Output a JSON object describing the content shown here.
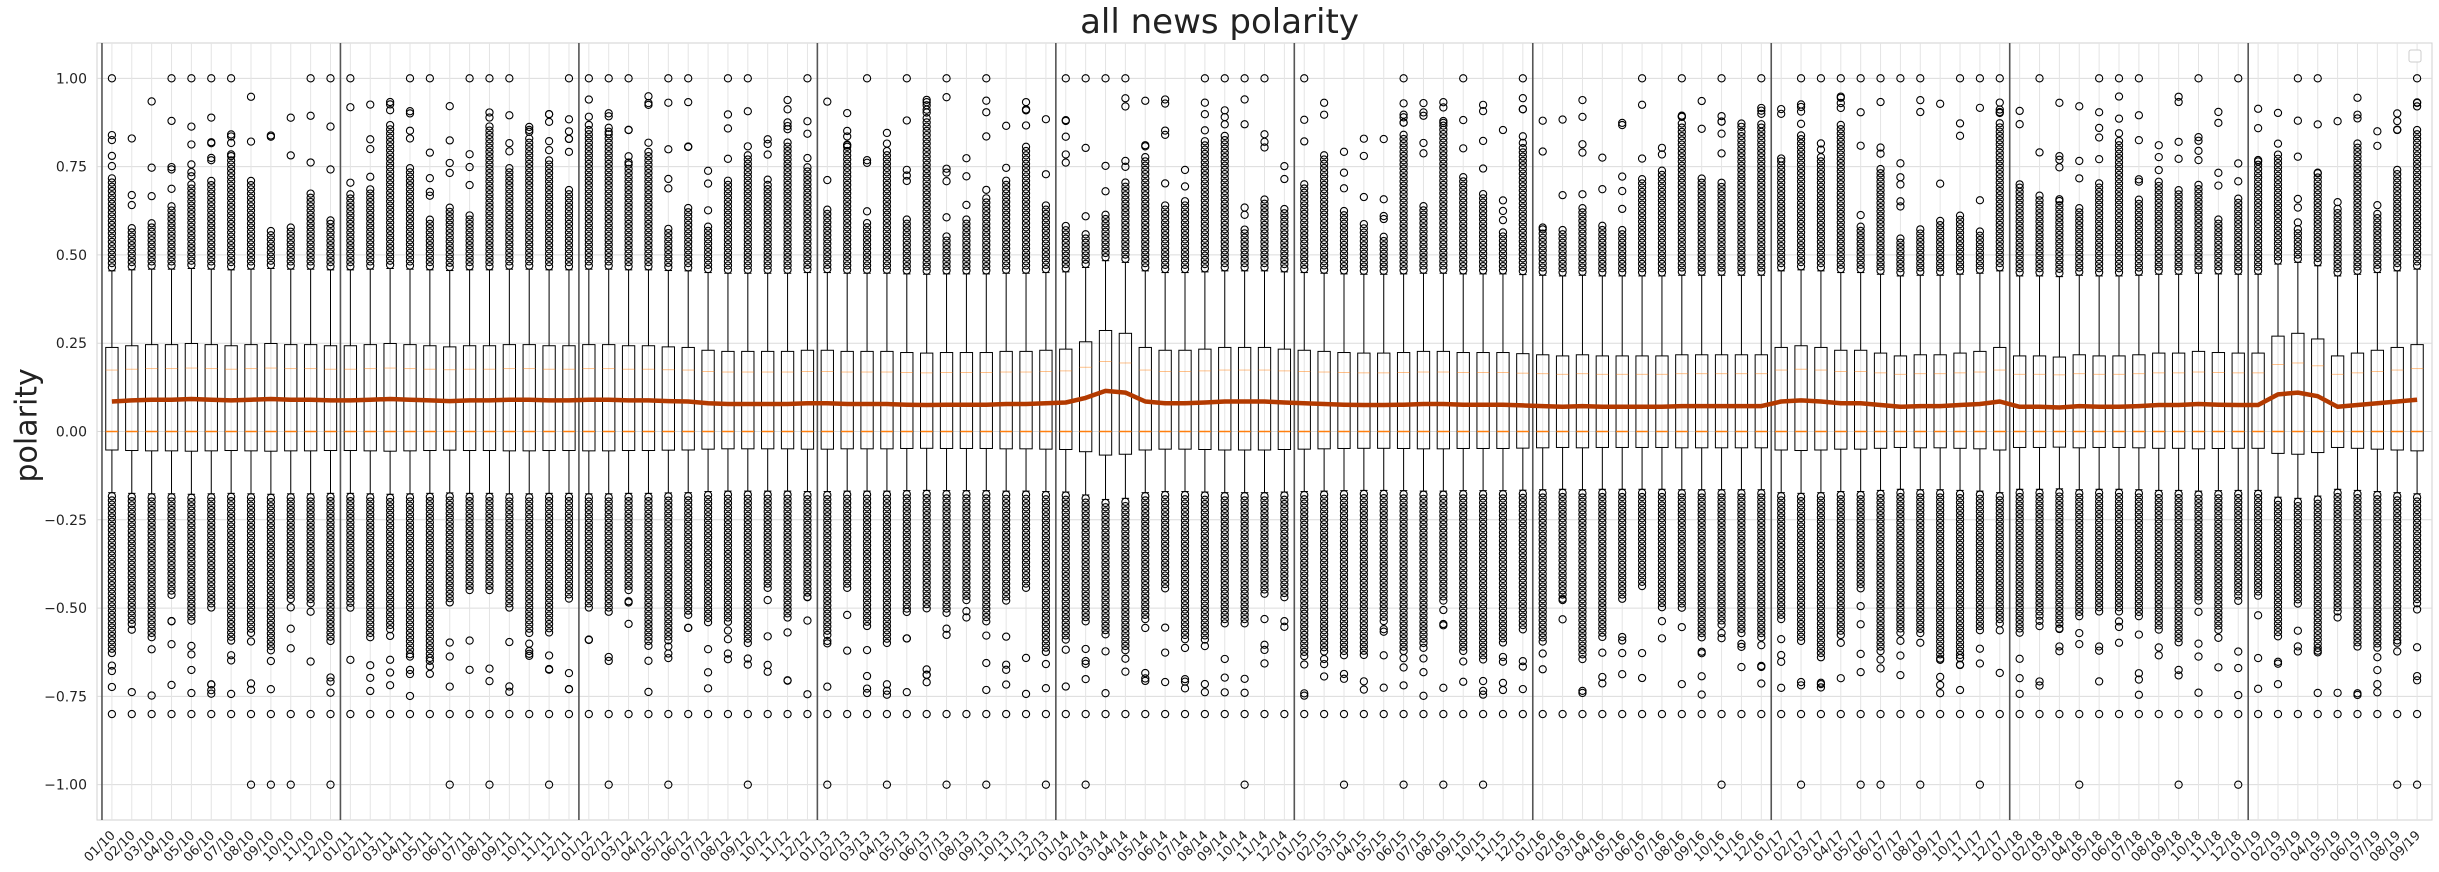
{
  "chart_data": {
    "type": "box",
    "title": "all news polarity",
    "xlabel": "",
    "ylabel": "polarity",
    "ylim": [
      -1.1,
      1.1
    ],
    "yticks": [
      -1.0,
      -0.75,
      -0.5,
      -0.25,
      0.0,
      0.25,
      0.5,
      0.75,
      1.0
    ],
    "ytick_labels": [
      "−1.00",
      "−0.75",
      "−0.50",
      "−0.25",
      "0.00",
      "0.25",
      "0.50",
      "0.75",
      "1.00"
    ],
    "grid": true,
    "categories": [
      "01/10",
      "02/10",
      "03/10",
      "04/10",
      "05/10",
      "06/10",
      "07/10",
      "08/10",
      "09/10",
      "10/10",
      "11/10",
      "12/10",
      "01/11",
      "02/11",
      "03/11",
      "04/11",
      "05/11",
      "06/11",
      "07/11",
      "08/11",
      "09/11",
      "10/11",
      "11/11",
      "12/11",
      "01/12",
      "02/12",
      "03/12",
      "04/12",
      "05/12",
      "06/12",
      "07/12",
      "08/12",
      "09/12",
      "10/12",
      "11/12",
      "12/12",
      "01/13",
      "02/13",
      "03/13",
      "04/13",
      "05/13",
      "06/13",
      "07/13",
      "08/13",
      "09/13",
      "10/13",
      "11/13",
      "12/13",
      "01/14",
      "02/14",
      "03/14",
      "04/14",
      "05/14",
      "06/14",
      "07/14",
      "08/14",
      "09/14",
      "10/14",
      "11/14",
      "12/14",
      "01/15",
      "02/15",
      "03/15",
      "04/15",
      "05/15",
      "06/15",
      "07/15",
      "08/15",
      "09/15",
      "10/15",
      "11/15",
      "12/15",
      "01/16",
      "02/16",
      "03/16",
      "04/16",
      "05/16",
      "06/16",
      "07/16",
      "08/16",
      "09/16",
      "10/16",
      "11/16",
      "12/16",
      "01/17",
      "02/17",
      "03/17",
      "04/17",
      "05/17",
      "06/17",
      "07/17",
      "08/17",
      "09/17",
      "10/17",
      "11/17",
      "12/17",
      "01/18",
      "02/18",
      "03/18",
      "04/18",
      "05/18",
      "06/18",
      "07/18",
      "08/18",
      "09/18",
      "10/18",
      "11/18",
      "12/18",
      "01/19",
      "02/19",
      "03/19",
      "04/19",
      "05/19",
      "06/19",
      "07/19",
      "08/19",
      "09/19"
    ],
    "year_separators": [
      "01/11",
      "01/12",
      "01/13",
      "01/14",
      "01/15",
      "01/16",
      "01/17",
      "01/18",
      "01/19"
    ],
    "typical_box": {
      "q1": -0.05,
      "median": 0.0,
      "q3": 0.23,
      "whisker_low": -0.17,
      "whisker_high": 0.45
    },
    "median_color": "#ff7f0e",
    "mean_line_color": "#b33a00",
    "mean": [
      0.085,
      0.088,
      0.09,
      0.09,
      0.092,
      0.09,
      0.088,
      0.09,
      0.092,
      0.09,
      0.09,
      0.088,
      0.088,
      0.09,
      0.092,
      0.09,
      0.088,
      0.086,
      0.088,
      0.088,
      0.09,
      0.09,
      0.088,
      0.088,
      0.09,
      0.09,
      0.088,
      0.088,
      0.086,
      0.085,
      0.08,
      0.078,
      0.078,
      0.078,
      0.078,
      0.08,
      0.08,
      0.078,
      0.078,
      0.078,
      0.076,
      0.075,
      0.076,
      0.076,
      0.076,
      0.078,
      0.078,
      0.08,
      0.082,
      0.095,
      0.115,
      0.11,
      0.085,
      0.08,
      0.08,
      0.082,
      0.085,
      0.085,
      0.085,
      0.082,
      0.08,
      0.078,
      0.076,
      0.075,
      0.075,
      0.076,
      0.078,
      0.078,
      0.076,
      0.076,
      0.076,
      0.074,
      0.072,
      0.07,
      0.072,
      0.07,
      0.07,
      0.07,
      0.07,
      0.072,
      0.072,
      0.072,
      0.072,
      0.072,
      0.085,
      0.088,
      0.085,
      0.08,
      0.08,
      0.075,
      0.07,
      0.072,
      0.072,
      0.075,
      0.078,
      0.085,
      0.07,
      0.07,
      0.068,
      0.072,
      0.07,
      0.07,
      0.072,
      0.075,
      0.075,
      0.078,
      0.076,
      0.075,
      0.075,
      0.105,
      0.11,
      0.1,
      0.07,
      0.075,
      0.08,
      0.085,
      0.09
    ],
    "outliers_high_extreme": 1.0,
    "outliers_low_extreme": -1.0,
    "outlier_levels": [
      0.8,
      -0.8
    ]
  }
}
